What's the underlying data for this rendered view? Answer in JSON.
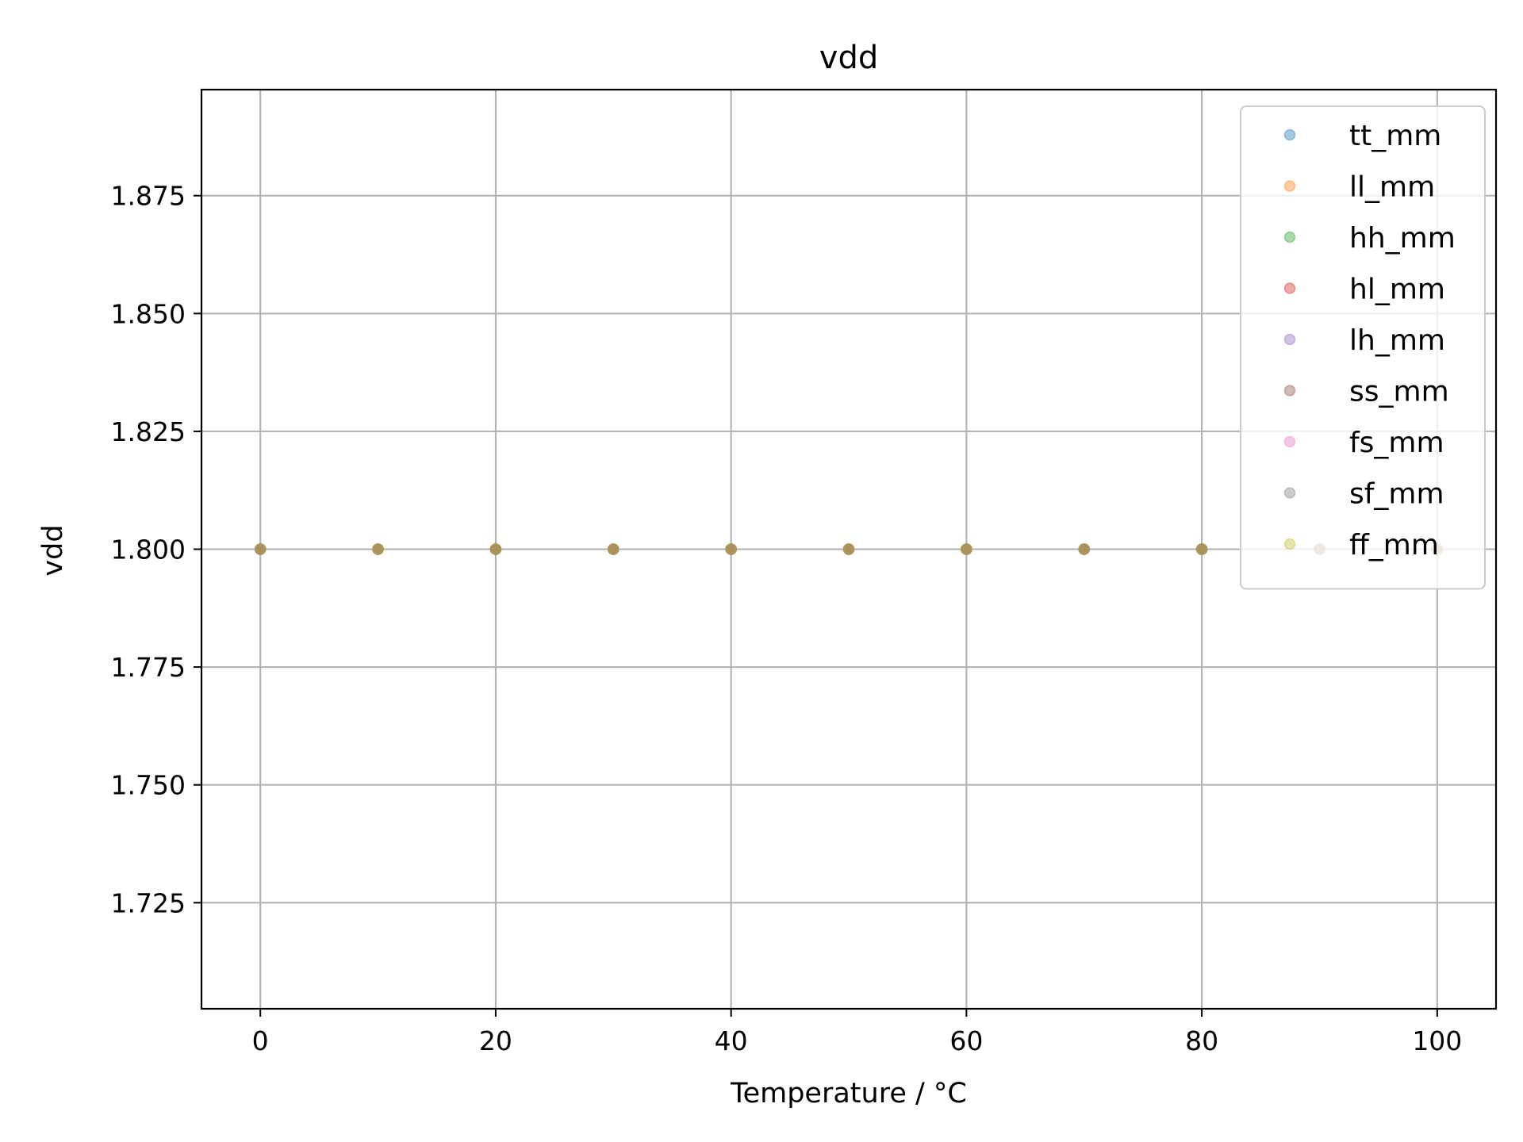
{
  "chart_data": {
    "type": "scatter",
    "title": "vdd",
    "xlabel": "Temperature / °C",
    "ylabel": "vdd",
    "xlim": [
      -5,
      105
    ],
    "ylim": [
      1.7025,
      1.8975
    ],
    "xticks": [
      0,
      20,
      40,
      60,
      80,
      100
    ],
    "xtick_labels": [
      "0",
      "20",
      "40",
      "60",
      "80",
      "100"
    ],
    "yticks": [
      1.725,
      1.75,
      1.775,
      1.8,
      1.825,
      1.85,
      1.875
    ],
    "ytick_labels": [
      "1.725",
      "1.750",
      "1.775",
      "1.800",
      "1.825",
      "1.850",
      "1.875"
    ],
    "grid": true,
    "legend_position": "top-right",
    "x": [
      0,
      10,
      20,
      30,
      40,
      50,
      60,
      70,
      80,
      90,
      100
    ],
    "series": [
      {
        "name": "tt_mm",
        "color": "#1f77b4",
        "values": [
          1.8,
          1.8,
          1.8,
          1.8,
          1.8,
          1.8,
          1.8,
          1.8,
          1.8,
          1.8,
          1.8
        ]
      },
      {
        "name": "ll_mm",
        "color": "#ff7f0e",
        "values": [
          1.8,
          1.8,
          1.8,
          1.8,
          1.8,
          1.8,
          1.8,
          1.8,
          1.8,
          1.8,
          1.8
        ]
      },
      {
        "name": "hh_mm",
        "color": "#2ca02c",
        "values": [
          1.8,
          1.8,
          1.8,
          1.8,
          1.8,
          1.8,
          1.8,
          1.8,
          1.8,
          1.8,
          1.8
        ]
      },
      {
        "name": "hl_mm",
        "color": "#d62728",
        "values": [
          1.8,
          1.8,
          1.8,
          1.8,
          1.8,
          1.8,
          1.8,
          1.8,
          1.8,
          1.8,
          1.8
        ]
      },
      {
        "name": "lh_mm",
        "color": "#9467bd",
        "values": [
          1.8,
          1.8,
          1.8,
          1.8,
          1.8,
          1.8,
          1.8,
          1.8,
          1.8,
          1.8,
          1.8
        ]
      },
      {
        "name": "ss_mm",
        "color": "#8c564b",
        "values": [
          1.8,
          1.8,
          1.8,
          1.8,
          1.8,
          1.8,
          1.8,
          1.8,
          1.8,
          1.8,
          1.8
        ]
      },
      {
        "name": "fs_mm",
        "color": "#e377c2",
        "values": [
          1.8,
          1.8,
          1.8,
          1.8,
          1.8,
          1.8,
          1.8,
          1.8,
          1.8,
          1.8,
          1.8
        ]
      },
      {
        "name": "sf_mm",
        "color": "#7f7f7f",
        "values": [
          1.8,
          1.8,
          1.8,
          1.8,
          1.8,
          1.8,
          1.8,
          1.8,
          1.8,
          1.8,
          1.8
        ]
      },
      {
        "name": "ff_mm",
        "color": "#bcbd22",
        "values": [
          1.8,
          1.8,
          1.8,
          1.8,
          1.8,
          1.8,
          1.8,
          1.8,
          1.8,
          1.8,
          1.8
        ]
      }
    ]
  }
}
